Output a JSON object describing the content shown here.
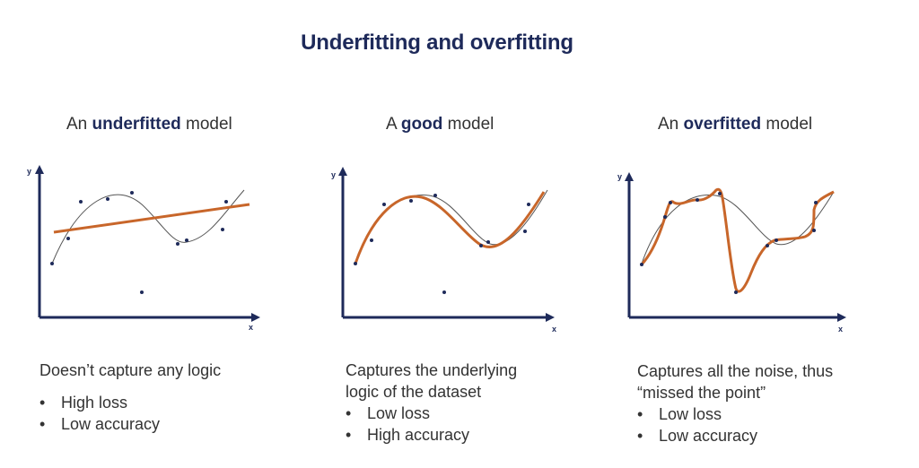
{
  "title": "Underfitting and overfitting",
  "colors": {
    "title": "#1e2a5a",
    "axis": "#1e2a5a",
    "fit_curve": "#c8662a",
    "true_curve": "#555555",
    "points": "#1e2a5a"
  },
  "panels": [
    {
      "title_pre": "An ",
      "title_bold": "underfitted",
      "title_post": " model",
      "axis_x": "x",
      "axis_y": "y",
      "description_lines": [
        "Doesn’t capture any logic"
      ],
      "bullets": [
        "High loss",
        "Low accuracy"
      ]
    },
    {
      "title_pre": "A ",
      "title_bold": "good",
      "title_post": " model",
      "axis_x": "x",
      "axis_y": "y",
      "description_lines": [
        "Captures the underlying",
        "logic of the dataset"
      ],
      "bullets": [
        "Low loss",
        "High accuracy"
      ]
    },
    {
      "title_pre": "An ",
      "title_bold": "overfitted",
      "title_post": " model",
      "axis_x": "x",
      "axis_y": "y",
      "description_lines": [
        "Captures all the noise, thus",
        "“missed the point”"
      ],
      "bullets": [
        "Low loss",
        "Low accuracy"
      ]
    }
  ]
}
